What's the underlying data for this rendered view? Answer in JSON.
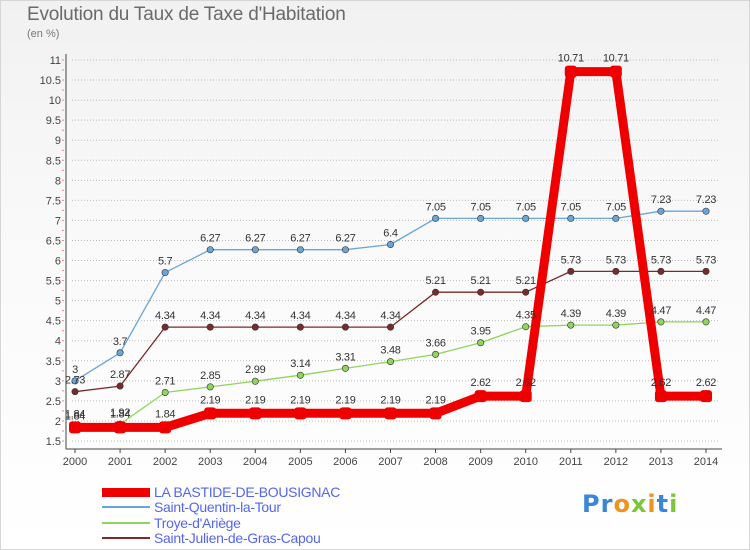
{
  "title": "Evolution du Taux de Taxe d'Habitation",
  "units": "(en %)",
  "logo_text": "Proxiti",
  "colors": {
    "bastide": "#ee0000",
    "quentin": "#6aa5d8",
    "troye": "#8fd45c",
    "julien": "#7a2a2a"
  },
  "chart_data": {
    "type": "line",
    "x": [
      2000,
      2001,
      2002,
      2003,
      2004,
      2005,
      2006,
      2007,
      2008,
      2009,
      2010,
      2011,
      2012,
      2013,
      2014
    ],
    "ylim": [
      1.5,
      11
    ],
    "yticks": [
      1.5,
      2,
      2.5,
      3,
      3.5,
      4,
      4.5,
      5,
      5.5,
      6,
      6.5,
      7,
      7.5,
      8,
      8.5,
      9,
      9.5,
      10,
      10.5,
      11
    ],
    "ytick_labels": [
      "1.5",
      "2",
      "2.5",
      "3",
      "3.5",
      "4",
      "4.5",
      "5",
      "5.5",
      "6",
      "6.5",
      "7",
      "7.5",
      "8",
      "8.5",
      "9",
      "9.5",
      "10",
      "10.5",
      "11"
    ],
    "grid": "horizontal dotted",
    "legend_position": "bottom-left",
    "series": [
      {
        "name": "LA BASTIDE-DE-BOUSIGNAC",
        "color": "#ee0000",
        "values": [
          1.84,
          1.84,
          1.84,
          2.19,
          2.19,
          2.19,
          2.19,
          2.19,
          2.19,
          2.62,
          2.62,
          10.71,
          10.71,
          2.62,
          2.62
        ],
        "labels": [
          "1.84",
          "1.84",
          "1.84",
          "2.19",
          "2.19",
          "2.19",
          "2.19",
          "2.19",
          "2.19",
          "2.62",
          "2.62",
          "10.71",
          "10.71",
          "2.62",
          "2.62"
        ]
      },
      {
        "name": "Saint-Quentin-la-Tour",
        "color": "#6aa5d8",
        "values": [
          3,
          3.7,
          5.7,
          6.27,
          6.27,
          6.27,
          6.27,
          6.4,
          7.05,
          7.05,
          7.05,
          7.05,
          7.05,
          7.23,
          7.23
        ],
        "labels": [
          "3",
          "3.7",
          "5.7",
          "6.27",
          "6.27",
          "6.27",
          "6.27",
          "6.4",
          "7.05",
          "7.05",
          "7.05",
          "7.05",
          "7.05",
          "7.23",
          "7.23"
        ]
      },
      {
        "name": "Troye-d'Ariège",
        "color": "#8fd45c",
        "values": [
          1.84,
          1.92,
          2.71,
          2.85,
          2.99,
          3.14,
          3.31,
          3.48,
          3.66,
          3.95,
          4.35,
          4.39,
          4.39,
          4.47,
          4.47
        ],
        "labels": [
          "1.84",
          "1.92",
          "2.71",
          "2.85",
          "2.99",
          "3.14",
          "3.31",
          "3.48",
          "3.66",
          "3.95",
          "4.35",
          "4.39",
          "4.39",
          "4.47",
          "4.47"
        ]
      },
      {
        "name": "Saint-Julien-de-Gras-Capou",
        "color": "#7a2a2a",
        "values": [
          2.73,
          2.87,
          4.34,
          4.34,
          4.34,
          4.34,
          4.34,
          4.34,
          5.21,
          5.21,
          5.21,
          5.73,
          5.73,
          5.73,
          5.73
        ],
        "labels": [
          "2.73",
          "2.87",
          "4.34",
          "4.34",
          "4.34",
          "4.34",
          "4.34",
          "4.34",
          "5.21",
          "5.21",
          "5.21",
          "5.73",
          "5.73",
          "5.73",
          "5.73"
        ]
      }
    ]
  }
}
